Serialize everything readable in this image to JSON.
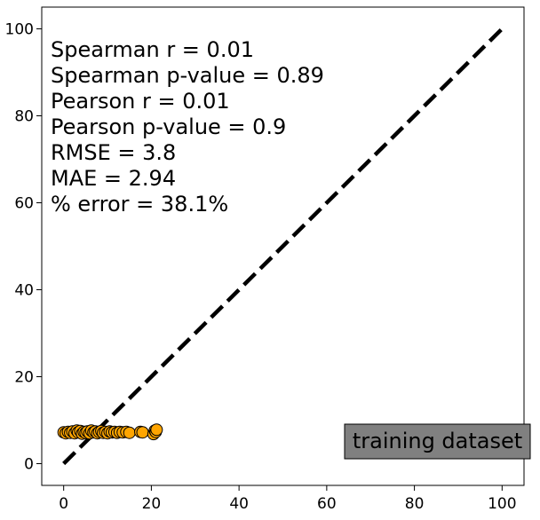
{
  "chart_data": {
    "type": "scatter",
    "xlim": [
      -5,
      105
    ],
    "ylim": [
      -5,
      105
    ],
    "x_ticks": [
      0,
      20,
      40,
      60,
      80,
      100
    ],
    "y_ticks": [
      0,
      20,
      40,
      60,
      80,
      100
    ],
    "grid": false,
    "point_color": "#FFA500",
    "point_edge_color": "#000000",
    "identity_line": {
      "style": "dashed",
      "color": "#000000",
      "from": [
        0,
        0
      ],
      "to": [
        100,
        100
      ]
    },
    "stats_lines": [
      "Spearman r = 0.01",
      "Spearman p-value = 0.89",
      "Pearson r = 0.01",
      "Pearson p-value = 0.9",
      "RMSE = 3.8",
      "MAE = 2.94",
      "% error = 38.1%"
    ],
    "badge_label": "training dataset",
    "badge_color": "#808080",
    "points": [
      {
        "x": 0.0,
        "y": 7.2
      },
      {
        "x": 0.5,
        "y": 7.0
      },
      {
        "x": 1.0,
        "y": 7.3
      },
      {
        "x": 1.5,
        "y": 7.1
      },
      {
        "x": 2.0,
        "y": 7.4
      },
      {
        "x": 2.5,
        "y": 7.0
      },
      {
        "x": 3.0,
        "y": 7.6
      },
      {
        "x": 3.3,
        "y": 7.2
      },
      {
        "x": 3.8,
        "y": 7.5
      },
      {
        "x": 4.2,
        "y": 6.9
      },
      {
        "x": 4.6,
        "y": 7.3
      },
      {
        "x": 5.0,
        "y": 7.1
      },
      {
        "x": 5.4,
        "y": 7.4
      },
      {
        "x": 5.9,
        "y": 7.0
      },
      {
        "x": 6.3,
        "y": 7.6
      },
      {
        "x": 6.8,
        "y": 7.2
      },
      {
        "x": 7.2,
        "y": 7.4
      },
      {
        "x": 7.7,
        "y": 7.0
      },
      {
        "x": 8.1,
        "y": 7.3
      },
      {
        "x": 8.6,
        "y": 7.5
      },
      {
        "x": 9.0,
        "y": 7.1
      },
      {
        "x": 9.5,
        "y": 7.3
      },
      {
        "x": 10.0,
        "y": 7.0
      },
      {
        "x": 10.5,
        "y": 7.4
      },
      {
        "x": 11.0,
        "y": 7.2
      },
      {
        "x": 11.6,
        "y": 7.3
      },
      {
        "x": 12.2,
        "y": 7.1
      },
      {
        "x": 12.8,
        "y": 7.3
      },
      {
        "x": 13.5,
        "y": 7.2
      },
      {
        "x": 14.3,
        "y": 7.3
      },
      {
        "x": 15.0,
        "y": 7.1
      },
      {
        "x": 17.5,
        "y": 7.3
      },
      {
        "x": 18.0,
        "y": 7.2
      },
      {
        "x": 20.5,
        "y": 6.8
      },
      {
        "x": 20.8,
        "y": 7.6
      },
      {
        "x": 21.0,
        "y": 7.3
      },
      {
        "x": 21.2,
        "y": 7.8
      }
    ]
  }
}
